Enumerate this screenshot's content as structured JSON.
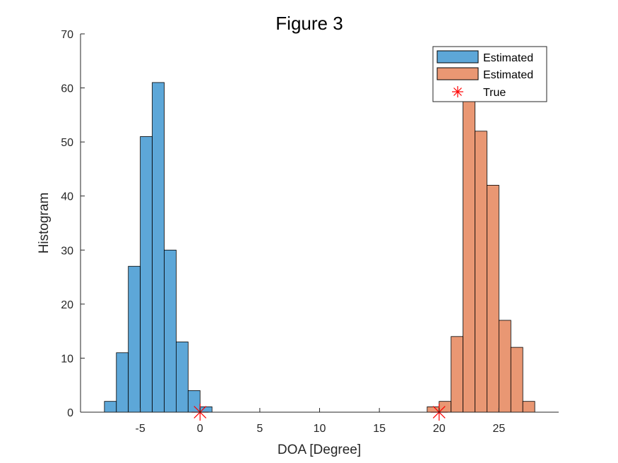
{
  "chart_data": {
    "type": "bar",
    "title": "Figure 3",
    "xlabel": "DOA [Degree]",
    "ylabel": "Histogram",
    "xlim": [
      -10,
      30
    ],
    "ylim": [
      0,
      70
    ],
    "xticks": [
      -5,
      0,
      5,
      10,
      15,
      20,
      25
    ],
    "yticks": [
      0,
      10,
      20,
      30,
      40,
      50,
      60,
      70
    ],
    "bin_width": 1,
    "legend_position": "top-right",
    "grid": false,
    "series": [
      {
        "name": "Estimated",
        "color": "#5da7d8",
        "bins": [
          {
            "x0": -8,
            "count": 2
          },
          {
            "x0": -7,
            "count": 11
          },
          {
            "x0": -6,
            "count": 27
          },
          {
            "x0": -5,
            "count": 51
          },
          {
            "x0": -4,
            "count": 61
          },
          {
            "x0": -3,
            "count": 30
          },
          {
            "x0": -2,
            "count": 13
          },
          {
            "x0": -1,
            "count": 4
          },
          {
            "x0": 0,
            "count": 1
          }
        ]
      },
      {
        "name": "Estimated",
        "color": "#e99773",
        "bins": [
          {
            "x0": 19,
            "count": 1
          },
          {
            "x0": 20,
            "count": 2
          },
          {
            "x0": 21,
            "count": 14
          },
          {
            "x0": 22,
            "count": 58
          },
          {
            "x0": 23,
            "count": 52
          },
          {
            "x0": 24,
            "count": 42
          },
          {
            "x0": 25,
            "count": 17
          },
          {
            "x0": 26,
            "count": 12
          },
          {
            "x0": 27,
            "count": 2
          }
        ]
      }
    ],
    "true_points": {
      "name": "True",
      "color": "#ff0000",
      "marker": "asterisk",
      "x": [
        0,
        20
      ],
      "y": [
        0,
        0
      ]
    }
  }
}
